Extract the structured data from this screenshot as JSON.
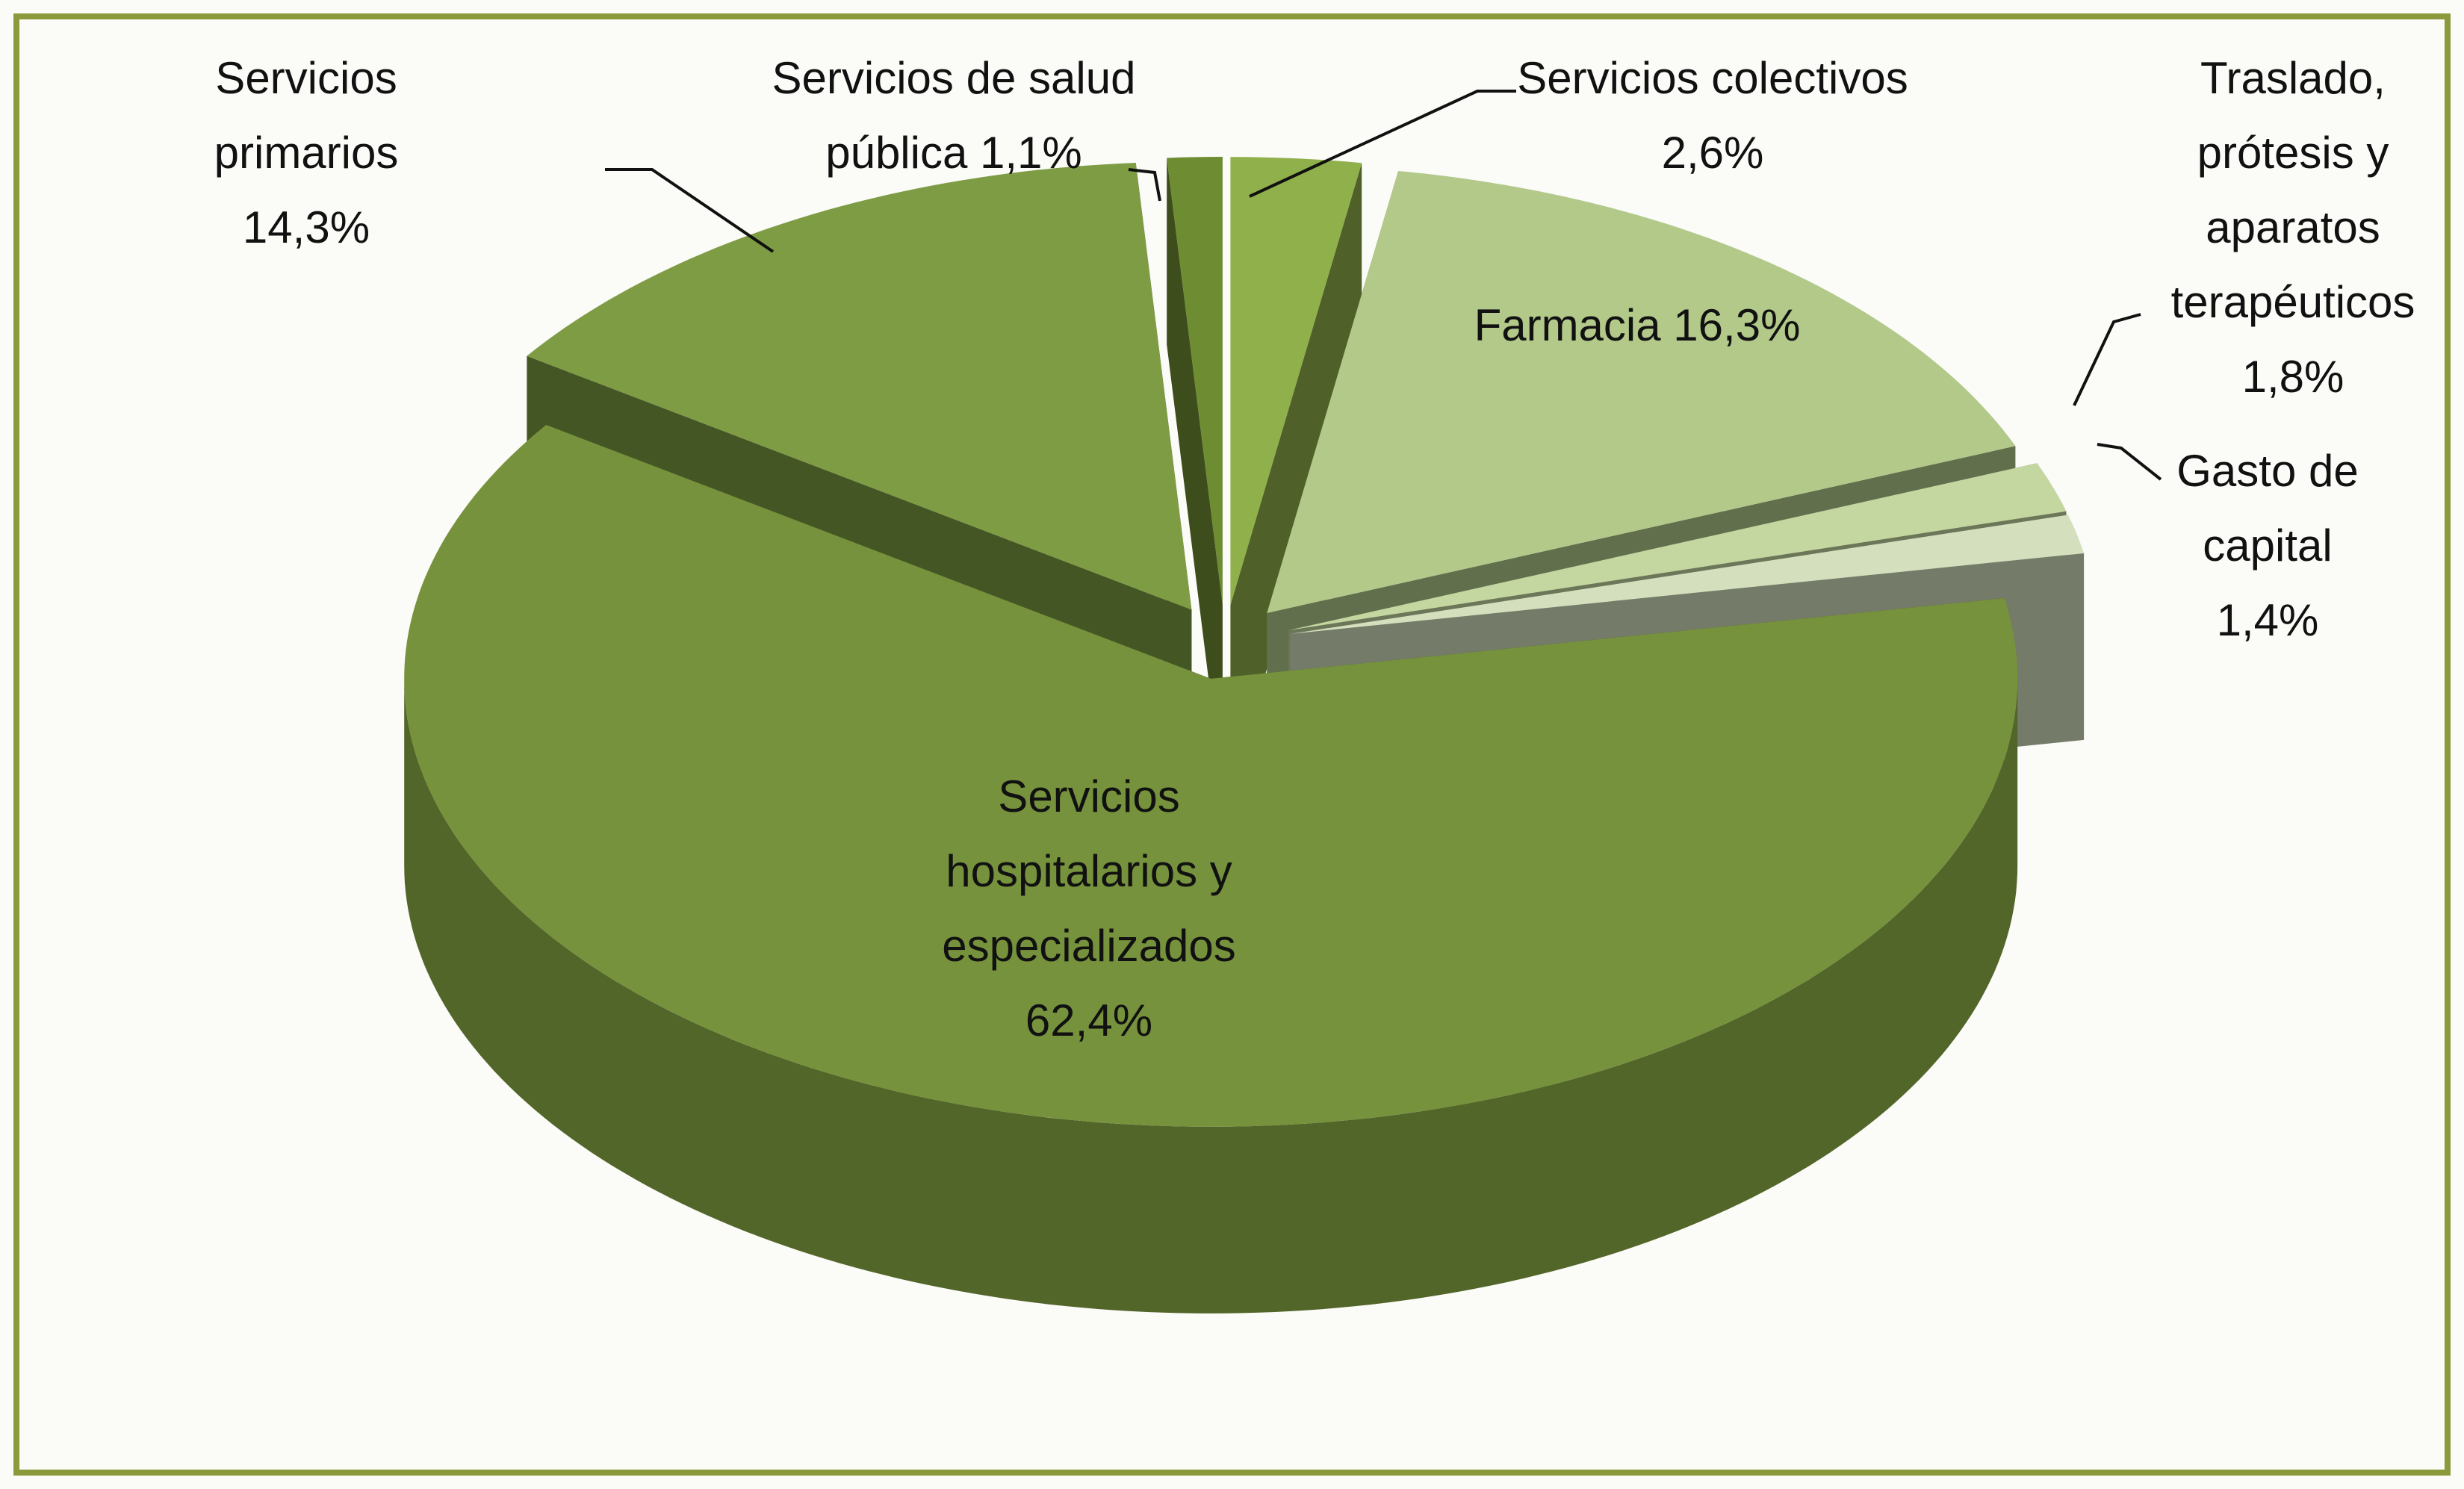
{
  "chart_data": {
    "type": "pie",
    "categories": [
      "Servicios colectivos",
      "Farmacia",
      "Traslado, prótesis y aparatos terapéuticos",
      "Gasto de capital",
      "Servicios hospitalarios y especializados",
      "Servicios primarios",
      "Servicios de salud pública"
    ],
    "values": [
      2.6,
      16.3,
      1.8,
      1.4,
      62.4,
      14.3,
      1.1
    ],
    "value_labels": [
      "2,6%",
      "16,3%",
      "1,8%",
      "1,4%",
      "62,4%",
      "14,3%",
      "1,1%"
    ],
    "colors": [
      "#8fb04a",
      "#b2c98a",
      "#c4d7a0",
      "#d3dfbd",
      "#76923c",
      "#7e9c44",
      "#6e8d32"
    ]
  }
}
